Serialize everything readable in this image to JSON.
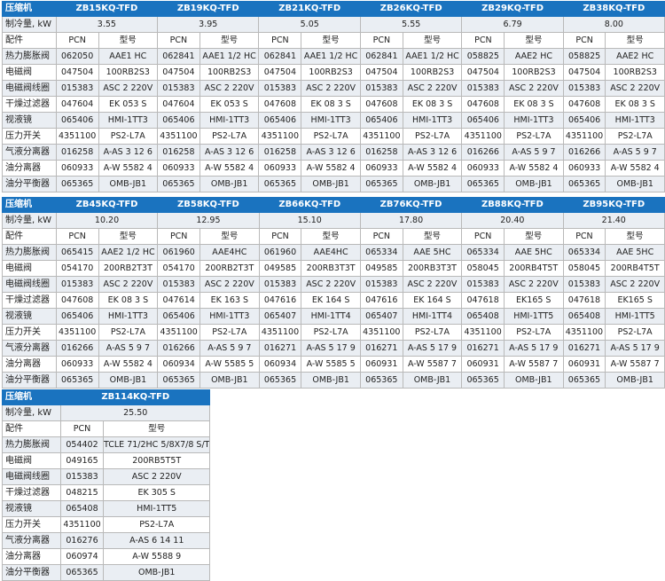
{
  "labels": {
    "compressor": "压缩机",
    "capacity": "制冷量, kW",
    "parts": "配件",
    "pcn": "PCN",
    "model": "型号"
  },
  "part_names": [
    "热力膨胀阀",
    "电磁阀",
    "电磁阀线圈",
    "干燥过滤器",
    "视液镜",
    "压力开关",
    "气液分离器",
    "油分离器",
    "油分平衡器"
  ],
  "tables": [
    {
      "models": [
        {
          "name": "ZB15KQ-TFD",
          "capacity": "3.55",
          "parts": [
            [
              "062050",
              "AAE1 HC"
            ],
            [
              "047504",
              "100RB2S3"
            ],
            [
              "015383",
              "ASC 2 220V"
            ],
            [
              "047604",
              "EK 053 S"
            ],
            [
              "065406",
              "HMI-1TT3"
            ],
            [
              "4351100",
              "PS2-L7A"
            ],
            [
              "016258",
              "A-AS 3 12 6"
            ],
            [
              "060933",
              "A-W 5582 4"
            ],
            [
              "065365",
              "OMB-JB1"
            ]
          ]
        },
        {
          "name": "ZB19KQ-TFD",
          "capacity": "3.95",
          "parts": [
            [
              "062841",
              "AAE1 1/2 HC"
            ],
            [
              "047504",
              "100RB2S3"
            ],
            [
              "015383",
              "ASC 2 220V"
            ],
            [
              "047604",
              "EK 053 S"
            ],
            [
              "065406",
              "HMI-1TT3"
            ],
            [
              "4351100",
              "PS2-L7A"
            ],
            [
              "016258",
              "A-AS 3 12 6"
            ],
            [
              "060933",
              "A-W 5582 4"
            ],
            [
              "065365",
              "OMB-JB1"
            ]
          ]
        },
        {
          "name": "ZB21KQ-TFD",
          "capacity": "5.05",
          "parts": [
            [
              "062841",
              "AAE1 1/2 HC"
            ],
            [
              "047504",
              "100RB2S3"
            ],
            [
              "015383",
              "ASC 2 220V"
            ],
            [
              "047608",
              "EK 08 3 S"
            ],
            [
              "065406",
              "HMI-1TT3"
            ],
            [
              "4351100",
              "PS2-L7A"
            ],
            [
              "016258",
              "A-AS 3 12 6"
            ],
            [
              "060933",
              "A-W 5582 4"
            ],
            [
              "065365",
              "OMB-JB1"
            ]
          ]
        },
        {
          "name": "ZB26KQ-TFD",
          "capacity": "5.55",
          "parts": [
            [
              "062841",
              "AAE1 1/2 HC"
            ],
            [
              "047504",
              "100RB2S3"
            ],
            [
              "015383",
              "ASC 2 220V"
            ],
            [
              "047608",
              "EK 08 3 S"
            ],
            [
              "065406",
              "HMI-1TT3"
            ],
            [
              "4351100",
              "PS2-L7A"
            ],
            [
              "016258",
              "A-AS 3 12 6"
            ],
            [
              "060933",
              "A-W 5582 4"
            ],
            [
              "065365",
              "OMB-JB1"
            ]
          ]
        },
        {
          "name": "ZB29KQ-TFD",
          "capacity": "6.79",
          "parts": [
            [
              "058825",
              "AAE2 HC"
            ],
            [
              "047504",
              "100RB2S3"
            ],
            [
              "015383",
              "ASC 2 220V"
            ],
            [
              "047608",
              "EK 08 3 S"
            ],
            [
              "065406",
              "HMI-1TT3"
            ],
            [
              "4351100",
              "PS2-L7A"
            ],
            [
              "016266",
              "A-AS 5 9 7"
            ],
            [
              "060933",
              "A-W 5582 4"
            ],
            [
              "065365",
              "OMB-JB1"
            ]
          ]
        },
        {
          "name": "ZB38KQ-TFD",
          "capacity": "8.00",
          "parts": [
            [
              "058825",
              "AAE2 HC"
            ],
            [
              "047504",
              "100RB2S3"
            ],
            [
              "015383",
              "ASC 2 220V"
            ],
            [
              "047608",
              "EK 08 3 S"
            ],
            [
              "065406",
              "HMI-1TT3"
            ],
            [
              "4351100",
              "PS2-L7A"
            ],
            [
              "016266",
              "A-AS 5 9 7"
            ],
            [
              "060933",
              "A-W 5582 4"
            ],
            [
              "065365",
              "OMB-JB1"
            ]
          ]
        }
      ]
    },
    {
      "models": [
        {
          "name": "ZB45KQ-TFD",
          "capacity": "10.20",
          "parts": [
            [
              "065415",
              "AAE2 1/2 HC"
            ],
            [
              "054170",
              "200RB2T3T"
            ],
            [
              "015383",
              "ASC 2 220V"
            ],
            [
              "047608",
              "EK 08 3 S"
            ],
            [
              "065406",
              "HMI-1TT3"
            ],
            [
              "4351100",
              "PS2-L7A"
            ],
            [
              "016266",
              "A-AS 5 9 7"
            ],
            [
              "060933",
              "A-W 5582 4"
            ],
            [
              "065365",
              "OMB-JB1"
            ]
          ]
        },
        {
          "name": "ZB58KQ-TFD",
          "capacity": "12.95",
          "parts": [
            [
              "061960",
              "AAE4HC"
            ],
            [
              "054170",
              "200RB2T3T"
            ],
            [
              "015383",
              "ASC 2 220V"
            ],
            [
              "047614",
              "EK 163 S"
            ],
            [
              "065406",
              "HMI-1TT3"
            ],
            [
              "4351100",
              "PS2-L7A"
            ],
            [
              "016266",
              "A-AS 5 9 7"
            ],
            [
              "060934",
              "A-W 5585 5"
            ],
            [
              "065365",
              "OMB-JB1"
            ]
          ]
        },
        {
          "name": "ZB66KQ-TFD",
          "capacity": "15.10",
          "parts": [
            [
              "061960",
              "AAE4HC"
            ],
            [
              "049585",
              "200RB3T3T"
            ],
            [
              "015383",
              "ASC 2 220V"
            ],
            [
              "047616",
              "EK 164 S"
            ],
            [
              "065407",
              "HMI-1TT4"
            ],
            [
              "4351100",
              "PS2-L7A"
            ],
            [
              "016271",
              "A-AS 5 17 9"
            ],
            [
              "060934",
              "A-W 5585 5"
            ],
            [
              "065365",
              "OMB-JB1"
            ]
          ]
        },
        {
          "name": "ZB76KQ-TFD",
          "capacity": "17.80",
          "parts": [
            [
              "065334",
              "AAE 5HC"
            ],
            [
              "049585",
              "200RB3T3T"
            ],
            [
              "015383",
              "ASC 2 220V"
            ],
            [
              "047616",
              "EK 164 S"
            ],
            [
              "065407",
              "HMI-1TT4"
            ],
            [
              "4351100",
              "PS2-L7A"
            ],
            [
              "016271",
              "A-AS 5 17 9"
            ],
            [
              "060931",
              "A-W 5587 7"
            ],
            [
              "065365",
              "OMB-JB1"
            ]
          ]
        },
        {
          "name": "ZB88KQ-TFD",
          "capacity": "20.40",
          "parts": [
            [
              "065334",
              "AAE 5HC"
            ],
            [
              "058045",
              "200RB4T5T"
            ],
            [
              "015383",
              "ASC 2 220V"
            ],
            [
              "047618",
              "EK165 S"
            ],
            [
              "065408",
              "HMI-1TT5"
            ],
            [
              "4351100",
              "PS2-L7A"
            ],
            [
              "016271",
              "A-AS 5 17 9"
            ],
            [
              "060931",
              "A-W 5587 7"
            ],
            [
              "065365",
              "OMB-JB1"
            ]
          ]
        },
        {
          "name": "ZB95KQ-TFD",
          "capacity": "21.40",
          "parts": [
            [
              "065334",
              "AAE 5HC"
            ],
            [
              "058045",
              "200RB4T5T"
            ],
            [
              "015383",
              "ASC 2 220V"
            ],
            [
              "047618",
              "EK165 S"
            ],
            [
              "065408",
              "HMI-1TT5"
            ],
            [
              "4351100",
              "PS2-L7A"
            ],
            [
              "016271",
              "A-AS 5 17 9"
            ],
            [
              "060931",
              "A-W 5587 7"
            ],
            [
              "065365",
              "OMB-JB1"
            ]
          ]
        }
      ]
    },
    {
      "models": [
        {
          "name": "ZB114KQ-TFD",
          "capacity": "25.50",
          "parts": [
            [
              "054402",
              "TCLE 71/2HC 5/8X7/8 S/T"
            ],
            [
              "049165",
              "200RB5T5T"
            ],
            [
              "015383",
              "ASC 2 220V"
            ],
            [
              "048215",
              "EK 305 S"
            ],
            [
              "065408",
              "HMI-1TT5"
            ],
            [
              "4351100",
              "PS2-L7A"
            ],
            [
              "016276",
              "A-AS 6 14 11"
            ],
            [
              "060974",
              "A-W 5588 9"
            ],
            [
              "065365",
              "OMB-JB1"
            ]
          ]
        }
      ]
    }
  ]
}
